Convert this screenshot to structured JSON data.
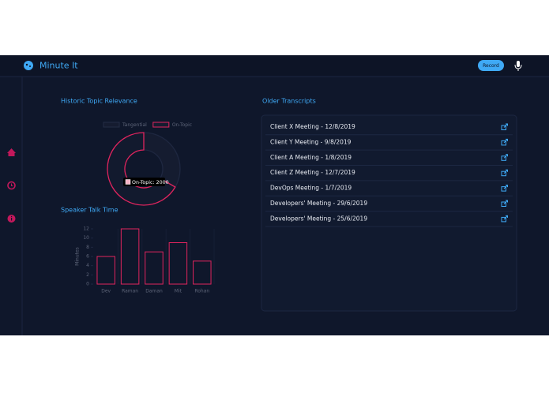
{
  "header": {
    "app_name": "Minute It",
    "record_button": "Record"
  },
  "topic_chart": {
    "title": "Historic Topic Relevance",
    "tooltip": "On-Topic: 2000",
    "chart_data": {
      "type": "doughnut",
      "categories": [
        "Tangential",
        "On-Topic"
      ],
      "values": [
        1000,
        2000
      ],
      "colors": [
        "#151c30",
        "#e0245e"
      ],
      "legend": "top"
    }
  },
  "talk_chart": {
    "title": "Speaker Talk Time",
    "chart_data": {
      "type": "bar",
      "y_label": "Minutes",
      "categories": [
        "Dev",
        "Raman",
        "Daman",
        "Mit",
        "Rohan"
      ],
      "values": [
        6,
        12,
        7,
        9,
        5
      ],
      "color": "#e0245e",
      "ylim": [
        0,
        12
      ],
      "yticks": [
        0,
        2,
        4,
        6,
        8,
        10,
        12
      ]
    }
  },
  "transcripts": {
    "title": "Older Transcripts",
    "items": [
      "Client X Meeting - 12/8/2019",
      "Client Y Meeting - 9/8/2019",
      "Client A Meeting - 1/8/2019",
      "Client Z Meeting - 12/7/2019",
      "DevOps Meeting - 1/7/2019",
      "Developers' Meeting - 29/6/2019",
      "Developers' Meeting - 25/6/2019"
    ]
  }
}
